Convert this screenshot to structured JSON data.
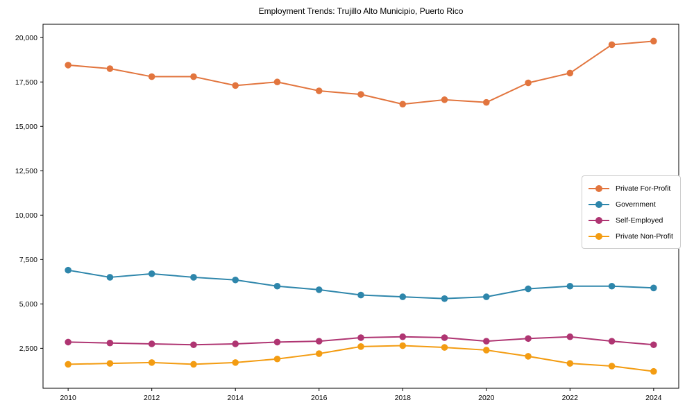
{
  "chart_data": {
    "type": "line",
    "title": "Employment Trends: Trujillo Alto Municipio, Puerto Rico",
    "xlabel": "",
    "ylabel": "",
    "x": [
      2010,
      2011,
      2012,
      2013,
      2014,
      2015,
      2016,
      2017,
      2018,
      2019,
      2020,
      2021,
      2022,
      2023,
      2024
    ],
    "series": [
      {
        "name": "Private For-Profit",
        "color": "#E2753E",
        "values": [
          18450,
          18250,
          17800,
          17800,
          17300,
          17500,
          17000,
          16800,
          16250,
          16500,
          16350,
          17450,
          18000,
          19600,
          19800
        ]
      },
      {
        "name": "Government",
        "color": "#2E86AB",
        "values": [
          6900,
          6500,
          6700,
          6500,
          6350,
          6000,
          5800,
          5500,
          5400,
          5300,
          5400,
          5850,
          6000,
          6000,
          5900
        ]
      },
      {
        "name": "Self-Employed",
        "color": "#AF3572",
        "values": [
          2850,
          2800,
          2750,
          2700,
          2750,
          2850,
          2900,
          3100,
          3150,
          3100,
          2900,
          3050,
          3150,
          2900,
          2700
        ]
      },
      {
        "name": "Private Non-Profit",
        "color": "#F39C12",
        "values": [
          1600,
          1650,
          1700,
          1600,
          1700,
          1900,
          2200,
          2600,
          2650,
          2550,
          2400,
          2050,
          1650,
          1500,
          1200
        ]
      }
    ],
    "xlim": [
      2009.4,
      2024.6
    ],
    "ylim": [
      250,
      20750
    ],
    "xticks": [
      2010,
      2012,
      2014,
      2016,
      2018,
      2020,
      2022,
      2024
    ],
    "xtick_labels": [
      "2010",
      "2012",
      "2014",
      "2016",
      "2018",
      "2020",
      "2022",
      "2024"
    ],
    "yticks": [
      2500,
      5000,
      7500,
      10000,
      12500,
      15000,
      17500,
      20000
    ],
    "ytick_labels": [
      "2,500",
      "5,000",
      "7,500",
      "10,000",
      "12,500",
      "15,000",
      "17,500",
      "20,000"
    ],
    "grid": false,
    "legend_position": "center-right",
    "marker": "circle",
    "axis_color": "#000000",
    "tick_label_color": "#000000"
  }
}
